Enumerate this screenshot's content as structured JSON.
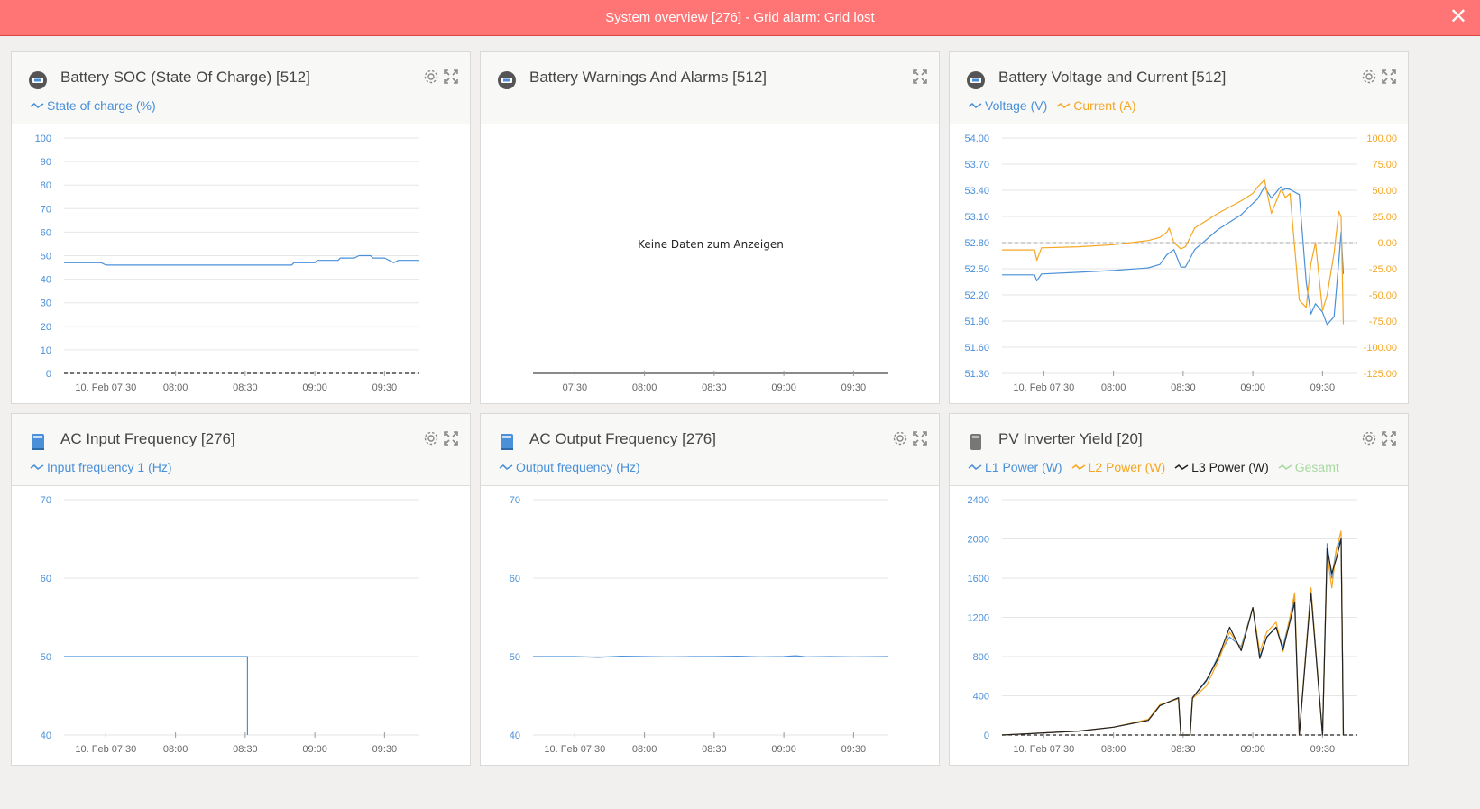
{
  "alarm": {
    "text": "System overview [276] - Grid alarm: Grid lost",
    "close": "✕"
  },
  "colors": {
    "blue": "#4a90d9",
    "orange": "#f5a623",
    "black": "#222222",
    "green": "#a8d8a0",
    "alarm": "#ff7474"
  },
  "panels": [
    {
      "title": "Battery SOC (State Of Charge) [512]",
      "icon": "battery-icon",
      "legend": [
        {
          "label": "State of charge (%)",
          "color": "#4a90d9"
        }
      ],
      "chart_data": {
        "type": "line",
        "title": "Battery SOC (State Of Charge) [512]",
        "y_ticks": [
          "100",
          "90",
          "80",
          "70",
          "60",
          "50",
          "40",
          "30",
          "20",
          "10",
          "0"
        ],
        "ylim": [
          0,
          100
        ],
        "x_ticks": [
          "10. Feb 07:30",
          "08:00",
          "08:30",
          "09:00",
          "09:30"
        ],
        "xlim": [
          "07:12",
          "09:45"
        ],
        "grid": true,
        "series": [
          {
            "name": "State of charge (%)",
            "color": "#4a90d9",
            "x": [
              "07:12",
              "07:28",
              "07:30",
              "08:50",
              "08:51",
              "09:00",
              "09:01",
              "09:10",
              "09:11",
              "09:17",
              "09:19",
              "09:24",
              "09:25",
              "09:30",
              "09:34",
              "09:36",
              "09:39",
              "09:45"
            ],
            "y": [
              47,
              47,
              46,
              46,
              47,
              47,
              48,
              48,
              49,
              49,
              50,
              50,
              49,
              49,
              47,
              48,
              48,
              48
            ]
          }
        ]
      }
    },
    {
      "title": "Battery Warnings And Alarms [512]",
      "icon": "battery-icon",
      "legend": [],
      "chart_data": {
        "type": "line",
        "title": "Battery Warnings And Alarms [512]",
        "message": "Keine Daten zum Anzeigen",
        "x_ticks": [
          "07:30",
          "08:00",
          "08:30",
          "09:00",
          "09:30"
        ],
        "xlim": [
          "07:12",
          "09:45"
        ],
        "series": []
      }
    },
    {
      "title": "Battery Voltage and Current [512]",
      "icon": "battery-icon",
      "legend": [
        {
          "label": "Voltage (V)",
          "color": "#4a90d9"
        },
        {
          "label": "Current (A)",
          "color": "#f5a623"
        }
      ],
      "chart_data": {
        "type": "line",
        "title": "Battery Voltage and Current [512]",
        "y_ticks": [
          "54.00",
          "53.70",
          "53.40",
          "53.10",
          "52.80",
          "52.50",
          "52.20",
          "51.90",
          "51.60",
          "51.30"
        ],
        "ylim": [
          51.3,
          54.0
        ],
        "y2_ticks": [
          "100.00",
          "75.00",
          "50.00",
          "25.00",
          "0.00",
          "-25.00",
          "-50.00",
          "-75.00",
          "-100.00",
          "-125.00"
        ],
        "y2lim": [
          -125,
          100
        ],
        "x_ticks": [
          "10. Feb 07:30",
          "08:00",
          "08:30",
          "09:00",
          "09:30"
        ],
        "xlim": [
          "07:12",
          "09:45"
        ],
        "grid": true,
        "series": [
          {
            "name": "Voltage (V)",
            "color": "#4a90d9",
            "axis": "left",
            "x": [
              "07:12",
              "07:26",
              "07:27",
              "07:29",
              "07:45",
              "08:00",
              "08:15",
              "08:20",
              "08:23",
              "08:26",
              "08:29",
              "08:31",
              "08:35",
              "08:45",
              "08:55",
              "09:00",
              "09:02",
              "09:05",
              "09:08",
              "09:12",
              "09:13",
              "09:14",
              "09:16",
              "09:20",
              "09:23",
              "09:25",
              "09:27",
              "09:30",
              "09:32",
              "09:35",
              "09:37",
              "09:38",
              "09:39"
            ],
            "y": [
              52.43,
              52.43,
              52.36,
              52.44,
              52.46,
              52.48,
              52.51,
              52.55,
              52.66,
              52.72,
              52.52,
              52.52,
              52.72,
              52.95,
              53.12,
              53.25,
              53.3,
              53.44,
              53.31,
              53.44,
              53.4,
              53.42,
              53.41,
              53.35,
              52.35,
              51.98,
              52.1,
              52.0,
              51.86,
              51.95,
              52.58,
              52.92,
              52.44
            ]
          },
          {
            "name": "Current (A)",
            "color": "#f5a623",
            "axis": "right",
            "x": [
              "07:12",
              "07:26",
              "07:27",
              "07:29",
              "07:45",
              "08:00",
              "08:15",
              "08:20",
              "08:23",
              "08:24",
              "08:26",
              "08:29",
              "08:31",
              "08:35",
              "08:45",
              "08:55",
              "09:00",
              "09:02",
              "09:05",
              "09:08",
              "09:12",
              "09:13",
              "09:14",
              "09:16",
              "09:20",
              "09:23",
              "09:25",
              "09:27",
              "09:30",
              "09:32",
              "09:35",
              "09:37",
              "09:38",
              "09:39"
            ],
            "y": [
              -7,
              -7,
              -17,
              -5,
              -4,
              -2,
              2,
              5,
              10,
              14,
              0,
              -6,
              -4,
              14,
              28,
              40,
              47,
              53,
              60,
              28,
              50,
              48,
              43,
              47,
              -55,
              -62,
              -20,
              0,
              -65,
              -50,
              -10,
              30,
              25,
              -78
            ]
          }
        ]
      }
    },
    {
      "title": "AC Input Frequency [276]",
      "icon": "inverter-icon",
      "legend": [
        {
          "label": "Input frequency 1 (Hz)",
          "color": "#4a90d9"
        }
      ],
      "chart_data": {
        "type": "line",
        "title": "AC Input Frequency [276]",
        "y_ticks": [
          "70",
          "60",
          "50",
          "40"
        ],
        "ylim": [
          40,
          70
        ],
        "x_ticks": [
          "10. Feb 07:30",
          "08:00",
          "08:30",
          "09:00",
          "09:30"
        ],
        "xlim": [
          "07:12",
          "09:45"
        ],
        "grid": true,
        "series": [
          {
            "name": "Input frequency 1 (Hz)",
            "color": "#4a90d9",
            "x": [
              "07:12",
              "08:31",
              "08:31"
            ],
            "y": [
              50,
              50,
              40
            ]
          }
        ]
      }
    },
    {
      "title": "AC Output Frequency [276]",
      "icon": "inverter-icon",
      "legend": [
        {
          "label": "Output frequency (Hz)",
          "color": "#4a90d9"
        }
      ],
      "chart_data": {
        "type": "line",
        "title": "AC Output Frequency [276]",
        "y_ticks": [
          "70",
          "60",
          "50",
          "40"
        ],
        "ylim": [
          40,
          70
        ],
        "x_ticks": [
          "10. Feb 07:30",
          "08:00",
          "08:30",
          "09:00",
          "09:30"
        ],
        "xlim": [
          "07:12",
          "09:45"
        ],
        "grid": true,
        "series": [
          {
            "name": "Output frequency (Hz)",
            "color": "#4a90d9",
            "x": [
              "07:12",
              "07:30",
              "07:40",
              "07:50",
              "08:00",
              "08:10",
              "08:20",
              "08:30",
              "08:40",
              "08:50",
              "09:00",
              "09:05",
              "09:10",
              "09:20",
              "09:30",
              "09:45"
            ],
            "y": [
              50,
              50,
              49.9,
              50.05,
              50,
              49.95,
              50,
              50,
              50.05,
              49.95,
              50,
              50.1,
              49.95,
              50,
              49.95,
              50
            ]
          }
        ]
      }
    },
    {
      "title": "PV Inverter Yield [20]",
      "icon": "pv-inverter-icon",
      "legend": [
        {
          "label": "L1 Power (W)",
          "color": "#4a90d9"
        },
        {
          "label": "L2 Power (W)",
          "color": "#f5a623"
        },
        {
          "label": "L3 Power (W)",
          "color": "#222222"
        },
        {
          "label": "Gesamt",
          "color": "#a8d8a0"
        }
      ],
      "chart_data": {
        "type": "line",
        "title": "PV Inverter Yield [20]",
        "y_ticks": [
          "2400",
          "2000",
          "1600",
          "1200",
          "800",
          "400",
          "0"
        ],
        "ylim": [
          0,
          2400
        ],
        "x_ticks": [
          "10. Feb 07:30",
          "08:00",
          "08:30",
          "09:00",
          "09:30"
        ],
        "xlim": [
          "07:12",
          "09:45"
        ],
        "grid": true,
        "series": [
          {
            "name": "L1 Power (W)",
            "color": "#4a90d9",
            "x": [
              "07:12",
              "07:45",
              "08:00",
              "08:15",
              "08:20",
              "08:28",
              "08:29",
              "08:33",
              "08:34",
              "08:40",
              "08:45",
              "08:50",
              "08:55",
              "09:00",
              "09:03",
              "09:06",
              "09:10",
              "09:13",
              "09:18",
              "09:20",
              "09:25",
              "09:30",
              "09:32",
              "09:34",
              "09:36",
              "09:38",
              "09:39"
            ],
            "y": [
              0,
              40,
              80,
              150,
              300,
              380,
              0,
              0,
              380,
              550,
              800,
              1000,
              900,
              1300,
              800,
              1000,
              1100,
              900,
              1400,
              0,
              1500,
              0,
              1950,
              1600,
              1900,
              2000,
              0
            ]
          },
          {
            "name": "L2 Power (W)",
            "color": "#f5a623",
            "x": [
              "07:12",
              "07:45",
              "08:00",
              "08:15",
              "08:20",
              "08:28",
              "08:29",
              "08:33",
              "08:34",
              "08:40",
              "08:45",
              "08:50",
              "08:55",
              "09:00",
              "09:03",
              "09:06",
              "09:10",
              "09:13",
              "09:18",
              "09:20",
              "09:25",
              "09:30",
              "09:32",
              "09:34",
              "09:36",
              "09:38",
              "09:39"
            ],
            "y": [
              0,
              40,
              80,
              160,
              310,
              370,
              0,
              0,
              370,
              500,
              750,
              1050,
              880,
              1300,
              850,
              1050,
              1150,
              850,
              1450,
              0,
              1500,
              0,
              1850,
              1500,
              1900,
              2080,
              0
            ]
          },
          {
            "name": "L3 Power (W)",
            "color": "#222222",
            "x": [
              "07:12",
              "07:45",
              "08:00",
              "08:15",
              "08:20",
              "08:28",
              "08:29",
              "08:33",
              "08:34",
              "08:40",
              "08:45",
              "08:50",
              "08:55",
              "09:00",
              "09:03",
              "09:06",
              "09:10",
              "09:13",
              "09:18",
              "09:20",
              "09:25",
              "09:30",
              "09:32",
              "09:34",
              "09:36",
              "09:38",
              "09:39"
            ],
            "y": [
              0,
              40,
              80,
              150,
              300,
              380,
              0,
              0,
              380,
              560,
              780,
              1100,
              860,
              1300,
              780,
              1000,
              1100,
              870,
              1350,
              0,
              1450,
              0,
              1900,
              1650,
              1800,
              2000,
              0
            ]
          }
        ]
      }
    }
  ]
}
